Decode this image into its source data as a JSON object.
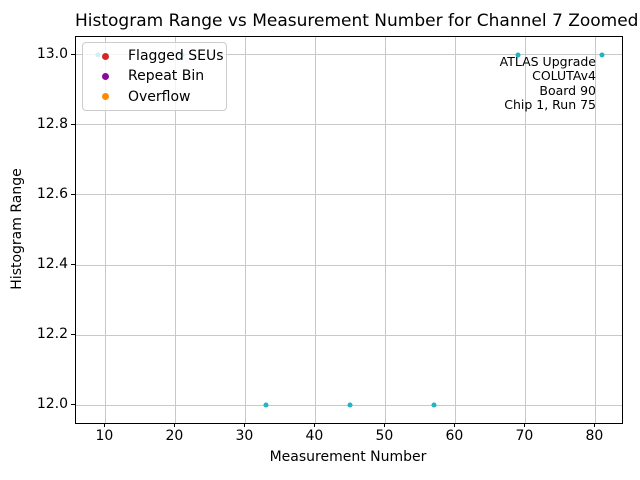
{
  "title": "Histogram Range vs Measurement Number for Channel 7 Zoomed",
  "axes": {
    "xlabel": "Measurement Number",
    "ylabel": "Histogram Range"
  },
  "legend": {
    "items": [
      {
        "name": "flagged-seus",
        "label": "Flagged SEUs",
        "color": "#d62728"
      },
      {
        "name": "repeat-bin",
        "label": "Repeat Bin",
        "color": "#8b0a9e"
      },
      {
        "name": "overflow",
        "label": "Overflow",
        "color": "#ff8c00"
      }
    ]
  },
  "annotation": {
    "lines": [
      "ATLAS Upgrade",
      "COLUTAv4",
      "Board 90",
      "Chip 1, Run 75"
    ]
  },
  "chart_data": {
    "type": "scatter",
    "title": "Histogram Range vs Measurement Number for Channel 7 Zoomed",
    "xlabel": "Measurement Number",
    "ylabel": "Histogram Range",
    "xlim": [
      5.8,
      83.8
    ],
    "ylim": [
      11.95,
      13.05
    ],
    "xticks": [
      10,
      20,
      30,
      40,
      50,
      60,
      70,
      80
    ],
    "xtick_labels": [
      "10",
      "20",
      "30",
      "40",
      "50",
      "60",
      "70",
      "80"
    ],
    "yticks": [
      12.0,
      12.2,
      12.4,
      12.6,
      12.8,
      13.0
    ],
    "ytick_labels": [
      "12.0",
      "12.2",
      "12.4",
      "12.6",
      "12.8",
      "13.0"
    ],
    "grid": true,
    "legend_position": "upper left",
    "marker_size_px": 5,
    "series": [
      {
        "name": "Histogram Range",
        "color": "#1fb5c5",
        "x": [
          9,
          21,
          33,
          45,
          57,
          69,
          81
        ],
        "y": [
          13,
          13,
          12,
          12,
          12,
          13,
          13
        ],
        "note": "points at x=9 and x=21 are partially hidden behind the legend box"
      },
      {
        "name": "Flagged SEUs",
        "color": "#d62728",
        "x": [],
        "y": []
      },
      {
        "name": "Repeat Bin",
        "color": "#8b0a9e",
        "x": [],
        "y": []
      },
      {
        "name": "Overflow",
        "color": "#ff8c00",
        "x": [],
        "y": []
      }
    ]
  }
}
